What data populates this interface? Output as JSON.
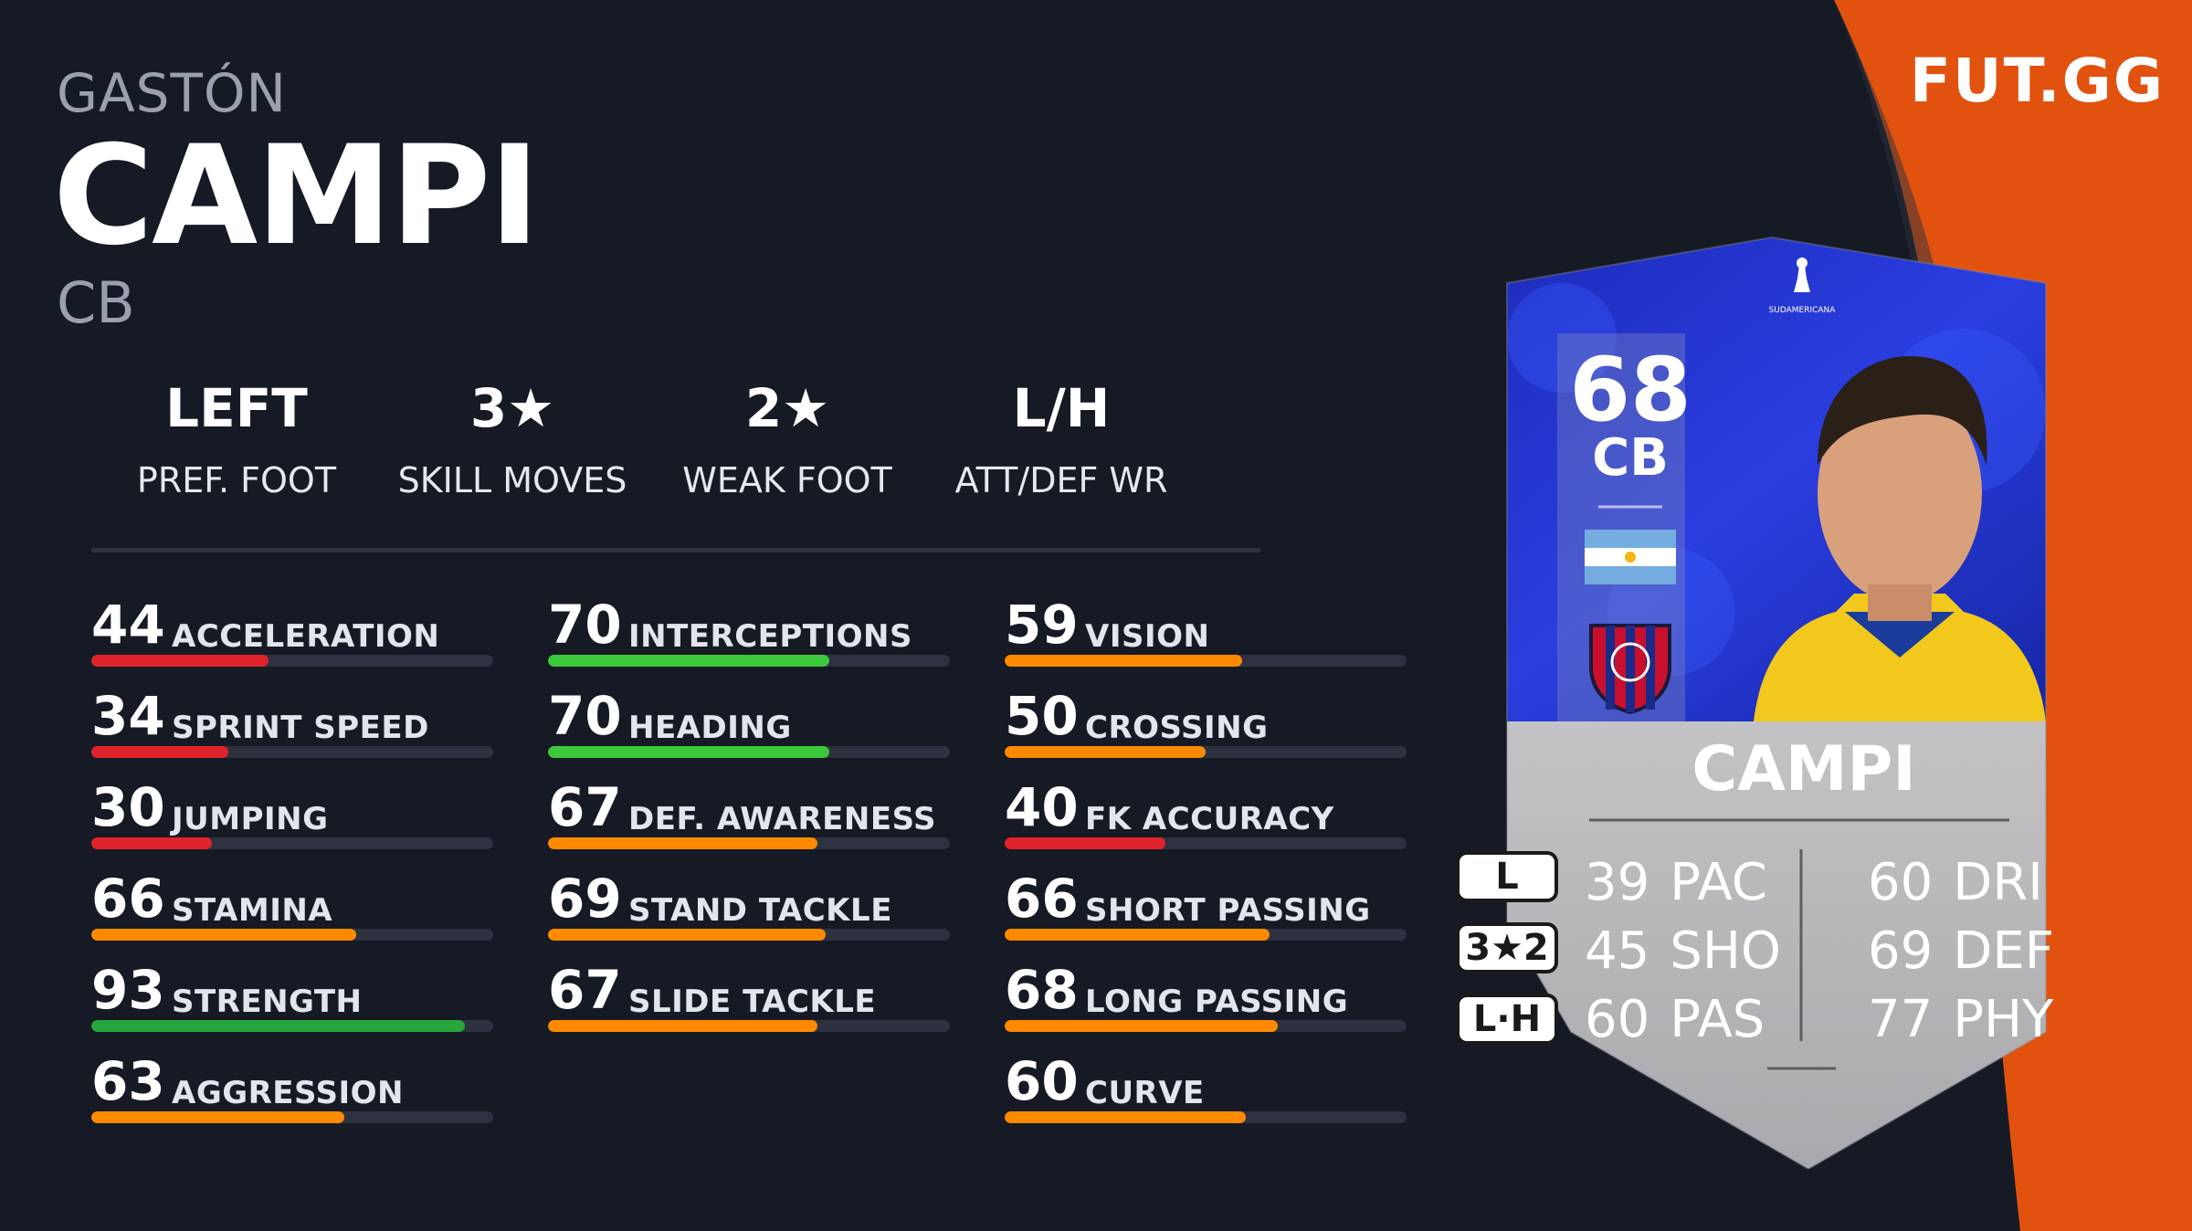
{
  "brand": "FUT.GG",
  "player": {
    "first_name": "GASTÓN",
    "last_name": "CAMPI",
    "position": "CB"
  },
  "info": [
    {
      "value": "LEFT",
      "label": "PREF. FOOT"
    },
    {
      "value": "3★",
      "label": "SKILL MOVES"
    },
    {
      "value": "2★",
      "label": "WEAK FOOT"
    },
    {
      "value": "L/H",
      "label": "ATT/DEF WR"
    }
  ],
  "stats": [
    [
      {
        "value": 44,
        "label": "ACCELERATION",
        "color": "#e0232b"
      },
      {
        "value": 34,
        "label": "SPRINT SPEED",
        "color": "#e0232b"
      },
      {
        "value": 30,
        "label": "JUMPING",
        "color": "#e0232b"
      },
      {
        "value": 66,
        "label": "STAMINA",
        "color": "#ff8a00"
      },
      {
        "value": 93,
        "label": "STRENGTH",
        "color": "#27a43a"
      },
      {
        "value": 63,
        "label": "AGGRESSION",
        "color": "#ff8a00"
      }
    ],
    [
      {
        "value": 70,
        "label": "INTERCEPTIONS",
        "color": "#3cc83c"
      },
      {
        "value": 70,
        "label": "HEADING",
        "color": "#3cc83c"
      },
      {
        "value": 67,
        "label": "DEF. AWARENESS",
        "color": "#ff8a00"
      },
      {
        "value": 69,
        "label": "STAND TACKLE",
        "color": "#ff8a00"
      },
      {
        "value": 67,
        "label": "SLIDE TACKLE",
        "color": "#ff8a00"
      }
    ],
    [
      {
        "value": 59,
        "label": "VISION",
        "color": "#ff8a00"
      },
      {
        "value": 50,
        "label": "CROSSING",
        "color": "#ff8a00"
      },
      {
        "value": 40,
        "label": "FK ACCURACY",
        "color": "#e0232b"
      },
      {
        "value": 66,
        "label": "SHORT PASSING",
        "color": "#ff8a00"
      },
      {
        "value": 68,
        "label": "LONG PASSING",
        "color": "#ff8a00"
      },
      {
        "value": 60,
        "label": "CURVE",
        "color": "#ff8a00"
      }
    ]
  ],
  "card": {
    "rating": "68",
    "position": "CB",
    "name": "CAMPI",
    "competition_logo_text": "SUDAMERICANA",
    "pills": [
      "L",
      "3★2",
      "L·H"
    ],
    "left_attrs": [
      {
        "value": "39",
        "label": "PAC"
      },
      {
        "value": "45",
        "label": "SHO"
      },
      {
        "value": "60",
        "label": "PAS"
      }
    ],
    "right_attrs": [
      {
        "value": "60",
        "label": "DRI"
      },
      {
        "value": "69",
        "label": "DEF"
      },
      {
        "value": "77",
        "label": "PHY"
      }
    ]
  },
  "colors": {
    "background": "#161a24",
    "accent_orange": "#e2520f",
    "track": "#2e3240"
  }
}
